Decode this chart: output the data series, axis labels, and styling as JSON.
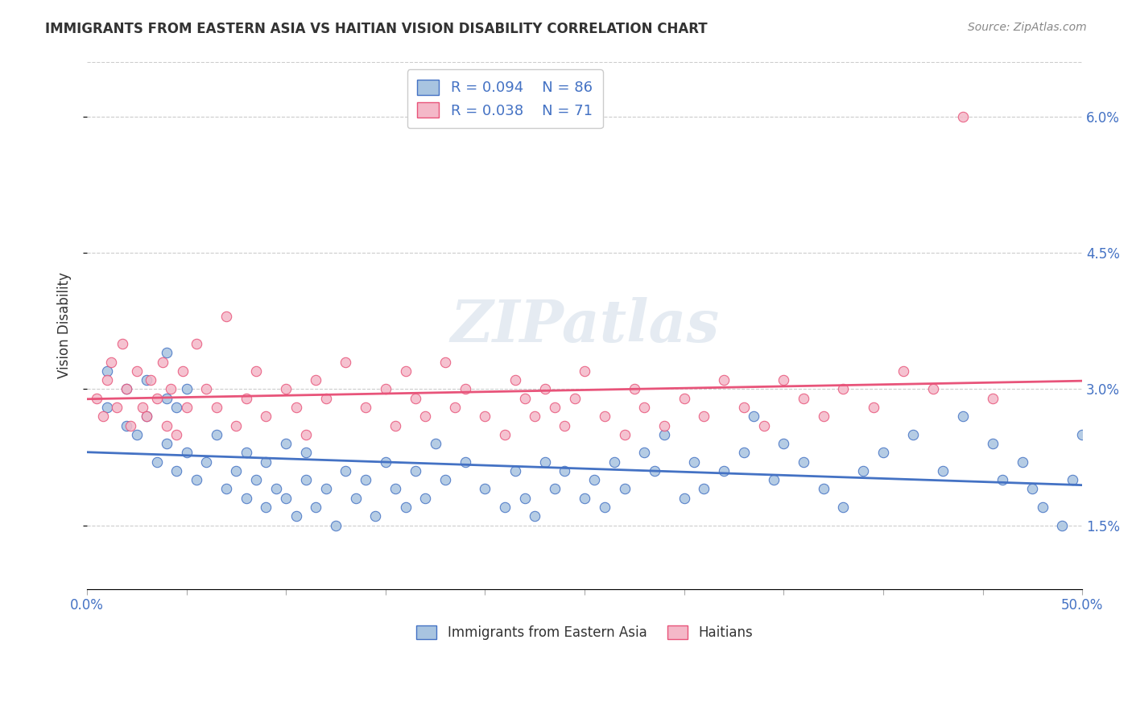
{
  "title": "IMMIGRANTS FROM EASTERN ASIA VS HAITIAN VISION DISABILITY CORRELATION CHART",
  "source": "Source: ZipAtlas.com",
  "ylabel": "Vision Disability",
  "yticks": [
    "1.5%",
    "3.0%",
    "4.5%",
    "6.0%"
  ],
  "ytick_vals": [
    0.015,
    0.03,
    0.045,
    0.06
  ],
  "xmin": 0.0,
  "xmax": 0.5,
  "ymin": 0.008,
  "ymax": 0.066,
  "blue_R": "0.094",
  "blue_N": "86",
  "pink_R": "0.038",
  "pink_N": "71",
  "blue_color": "#a8c4e0",
  "pink_color": "#f4b8c8",
  "blue_line_color": "#4472c4",
  "pink_line_color": "#e8547a",
  "legend_blue_label": "Immigrants from Eastern Asia",
  "legend_pink_label": "Haitians",
  "watermark": "ZIPatlas",
  "blue_scatter_x": [
    0.01,
    0.01,
    0.02,
    0.02,
    0.025,
    0.03,
    0.03,
    0.035,
    0.04,
    0.04,
    0.04,
    0.045,
    0.045,
    0.05,
    0.05,
    0.055,
    0.06,
    0.065,
    0.07,
    0.075,
    0.08,
    0.08,
    0.085,
    0.09,
    0.09,
    0.095,
    0.1,
    0.1,
    0.105,
    0.11,
    0.11,
    0.115,
    0.12,
    0.125,
    0.13,
    0.135,
    0.14,
    0.145,
    0.15,
    0.155,
    0.16,
    0.165,
    0.17,
    0.175,
    0.18,
    0.19,
    0.2,
    0.21,
    0.215,
    0.22,
    0.225,
    0.23,
    0.235,
    0.24,
    0.25,
    0.255,
    0.26,
    0.265,
    0.27,
    0.28,
    0.285,
    0.29,
    0.3,
    0.305,
    0.31,
    0.32,
    0.33,
    0.335,
    0.345,
    0.35,
    0.36,
    0.37,
    0.38,
    0.39,
    0.4,
    0.415,
    0.43,
    0.44,
    0.455,
    0.46,
    0.47,
    0.475,
    0.48,
    0.49,
    0.495,
    0.5
  ],
  "blue_scatter_y": [
    0.028,
    0.032,
    0.026,
    0.03,
    0.025,
    0.027,
    0.031,
    0.022,
    0.024,
    0.029,
    0.034,
    0.021,
    0.028,
    0.023,
    0.03,
    0.02,
    0.022,
    0.025,
    0.019,
    0.021,
    0.018,
    0.023,
    0.02,
    0.017,
    0.022,
    0.019,
    0.018,
    0.024,
    0.016,
    0.02,
    0.023,
    0.017,
    0.019,
    0.015,
    0.021,
    0.018,
    0.02,
    0.016,
    0.022,
    0.019,
    0.017,
    0.021,
    0.018,
    0.024,
    0.02,
    0.022,
    0.019,
    0.017,
    0.021,
    0.018,
    0.016,
    0.022,
    0.019,
    0.021,
    0.018,
    0.02,
    0.017,
    0.022,
    0.019,
    0.023,
    0.021,
    0.025,
    0.018,
    0.022,
    0.019,
    0.021,
    0.023,
    0.027,
    0.02,
    0.024,
    0.022,
    0.019,
    0.017,
    0.021,
    0.023,
    0.025,
    0.021,
    0.027,
    0.024,
    0.02,
    0.022,
    0.019,
    0.017,
    0.015,
    0.02,
    0.025
  ],
  "pink_scatter_x": [
    0.005,
    0.008,
    0.01,
    0.012,
    0.015,
    0.018,
    0.02,
    0.022,
    0.025,
    0.028,
    0.03,
    0.032,
    0.035,
    0.038,
    0.04,
    0.042,
    0.045,
    0.048,
    0.05,
    0.055,
    0.06,
    0.065,
    0.07,
    0.075,
    0.08,
    0.085,
    0.09,
    0.1,
    0.105,
    0.11,
    0.115,
    0.12,
    0.13,
    0.14,
    0.15,
    0.155,
    0.16,
    0.165,
    0.17,
    0.18,
    0.185,
    0.19,
    0.2,
    0.21,
    0.215,
    0.22,
    0.225,
    0.23,
    0.235,
    0.24,
    0.245,
    0.25,
    0.26,
    0.27,
    0.275,
    0.28,
    0.29,
    0.3,
    0.31,
    0.32,
    0.33,
    0.34,
    0.35,
    0.36,
    0.37,
    0.38,
    0.395,
    0.41,
    0.425,
    0.44,
    0.455
  ],
  "pink_scatter_y": [
    0.029,
    0.027,
    0.031,
    0.033,
    0.028,
    0.035,
    0.03,
    0.026,
    0.032,
    0.028,
    0.027,
    0.031,
    0.029,
    0.033,
    0.026,
    0.03,
    0.025,
    0.032,
    0.028,
    0.035,
    0.03,
    0.028,
    0.038,
    0.026,
    0.029,
    0.032,
    0.027,
    0.03,
    0.028,
    0.025,
    0.031,
    0.029,
    0.033,
    0.028,
    0.03,
    0.026,
    0.032,
    0.029,
    0.027,
    0.033,
    0.028,
    0.03,
    0.027,
    0.025,
    0.031,
    0.029,
    0.027,
    0.03,
    0.028,
    0.026,
    0.029,
    0.032,
    0.027,
    0.025,
    0.03,
    0.028,
    0.026,
    0.029,
    0.027,
    0.031,
    0.028,
    0.026,
    0.031,
    0.029,
    0.027,
    0.03,
    0.028,
    0.032,
    0.03,
    0.06,
    0.029
  ]
}
